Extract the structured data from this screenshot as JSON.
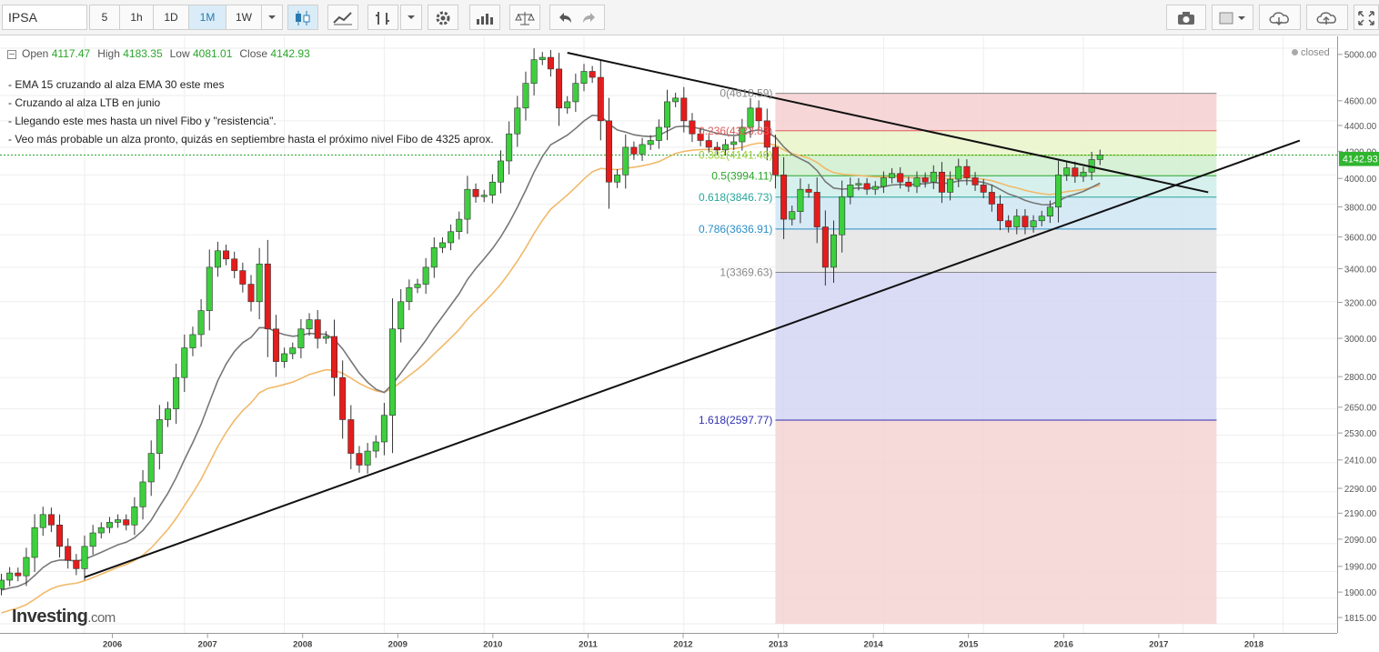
{
  "toolbar": {
    "symbol": "IPSA",
    "intervals": [
      "5",
      "1h",
      "1D",
      "1M",
      "1W"
    ],
    "active_interval": "1M"
  },
  "ohlc": {
    "open_label": "Open",
    "open": "4117.47",
    "high_label": "High",
    "high": "4183.35",
    "low_label": "Low",
    "low": "4081.01",
    "close_label": "Close",
    "close": "4142.93"
  },
  "notes": [
    "- EMA 15 cruzando al alza EMA 30 este mes",
    "- Cruzando al alza LTB en junio",
    "- Llegando este mes hasta un nivel Fibo y \"resistencia\".",
    "- Veo más probable un alza pronto, quizás en septiembre hasta el próximo nivel Fibo de 4325 aprox."
  ],
  "status": "closed",
  "last_price": "4142.93",
  "logo": {
    "name": "Investing",
    "suffix": ".com"
  },
  "colors": {
    "up": "#3ecf3e",
    "down": "#e51c1c",
    "ema15": "#777777",
    "ema30": "#f1b96a"
  },
  "chart_data": {
    "type": "candlestick",
    "x_ticks": [
      "2006",
      "2007",
      "2008",
      "2009",
      "2010",
      "2011",
      "2012",
      "2013",
      "2014",
      "2015",
      "2016",
      "2017",
      "2018"
    ],
    "y_ticks": [
      5000,
      4600,
      4400,
      4200,
      4000,
      3800,
      3600,
      3400,
      3200,
      3000,
      2800,
      2650,
      2530,
      2410,
      2290,
      2190,
      2090,
      1990,
      1900,
      1815
    ],
    "y_tick_labels": [
      "5000.00",
      "4600.00",
      "4400.00",
      "4200.00",
      "4000.00",
      "3800.00",
      "3600.00",
      "3400.00",
      "3200.00",
      "3000.00",
      "2800.00",
      "2650.00",
      "2530.00",
      "2410.00",
      "2290.00",
      "2190.00",
      "2090.00",
      "1990.00",
      "1900.00",
      "1815.00"
    ],
    "y_scale": "log",
    "fibonacci": [
      {
        "label": "0(4618.59)",
        "value": 4618.59,
        "color": "#888888"
      },
      {
        "label": "0.236(4323.83)",
        "value": 4323.83,
        "color": "#e05a5a"
      },
      {
        "label": "0.382(4141.40)",
        "value": 4141.4,
        "color": "#9acd32"
      },
      {
        "label": "0.5(3994.11)",
        "value": 3994.11,
        "color": "#2aa52a"
      },
      {
        "label": "0.618(3846.73)",
        "value": 3846.73,
        "color": "#26a69a"
      },
      {
        "label": "0.786(3636.91)",
        "value": 3636.91,
        "color": "#2a8fc7"
      },
      {
        "label": "1(3369.63)",
        "value": 3369.63,
        "color": "#888888"
      },
      {
        "label": "1.618(2597.77)",
        "value": 2597.77,
        "color": "#3030b0"
      }
    ],
    "closes": [
      1960,
      1985,
      1975,
      2040,
      2150,
      2200,
      2160,
      2080,
      2030,
      2000,
      2080,
      2130,
      2150,
      2170,
      2180,
      2160,
      2230,
      2330,
      2450,
      2600,
      2650,
      2800,
      2950,
      3020,
      3150,
      3400,
      3500,
      3450,
      3380,
      3300,
      3200,
      3420,
      3050,
      2880,
      2920,
      2950,
      3050,
      3100,
      3000,
      3010,
      2800,
      2600,
      2450,
      2400,
      2460,
      2500,
      2620,
      3050,
      3200,
      3280,
      3300,
      3400,
      3520,
      3550,
      3620,
      3700,
      3900,
      3850,
      3860,
      3950,
      4100,
      4300,
      4500,
      4700,
      4900,
      4920,
      4820,
      4500,
      4550,
      4700,
      4800,
      4750,
      4400,
      3950,
      4000,
      4200,
      4150,
      4220,
      4250,
      4350,
      4550,
      4580,
      4400,
      4300,
      4250,
      4200,
      4180,
      4220,
      4240,
      4350,
      4500,
      4400,
      4200,
      4000,
      3700,
      3750,
      3900,
      3880,
      3650,
      3400,
      3600,
      3850,
      3930,
      3940,
      3900,
      3920,
      3980,
      4010,
      3950,
      3920,
      3980,
      3950,
      4020,
      3880,
      3970,
      4060,
      3980,
      3930,
      3880,
      3800,
      3690,
      3650,
      3720,
      3650,
      3690,
      3720,
      3780,
      4000,
      4050,
      3990,
      4020,
      4110,
      4142.93
    ],
    "ema15": [],
    "ema30": [],
    "trendlines": [
      {
        "name": "LTB",
        "from": [
          "2010-11",
          4960
        ],
        "to": [
          "2017-04",
          3880
        ]
      },
      {
        "name": "LTA",
        "from": [
          "2006-01",
          1970
        ],
        "to": [
          "2018-03",
          4250
        ]
      }
    ]
  }
}
